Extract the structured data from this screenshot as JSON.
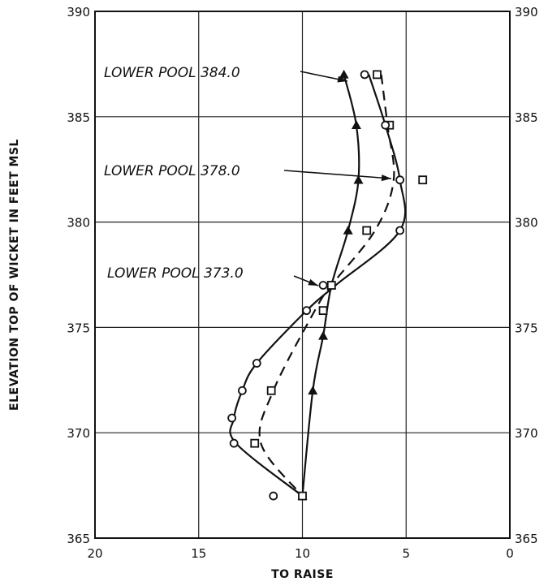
{
  "chart_data": {
    "type": "line",
    "title": "",
    "xlabel": "TO RAISE",
    "ylabel": "ELEVATION TOP OF WICKET IN FEET MSL",
    "xlim": [
      20,
      0
    ],
    "ylim": [
      365,
      390
    ],
    "x_ticks": [
      "20",
      "15",
      "10",
      "5",
      "0"
    ],
    "y_ticks": [
      "365",
      "370",
      "375",
      "380",
      "385",
      "390"
    ],
    "grid": true,
    "series": [
      {
        "name": "LOWER POOL 384.0",
        "marker": "triangle",
        "line_style": "solid",
        "points": [
          {
            "x": 8.0,
            "y": 387.0
          },
          {
            "x": 7.4,
            "y": 384.6
          },
          {
            "x": 7.3,
            "y": 382.0
          },
          {
            "x": 7.8,
            "y": 379.6
          },
          {
            "x": 8.6,
            "y": 377.0
          },
          {
            "x": 9.0,
            "y": 374.6
          },
          {
            "x": 9.5,
            "y": 372.0
          },
          {
            "x": 10.0,
            "y": 367.0
          }
        ]
      },
      {
        "name": "LOWER POOL 378.0",
        "marker": "square",
        "line_style": "dashed",
        "points": [
          {
            "x": 6.4,
            "y": 387.0
          },
          {
            "x": 5.8,
            "y": 384.6
          },
          {
            "x": 4.2,
            "y": 382.0
          },
          {
            "x": 6.9,
            "y": 379.6
          },
          {
            "x": 8.6,
            "y": 377.0
          },
          {
            "x": 9.0,
            "y": 375.8
          },
          {
            "x": 11.5,
            "y": 372.0
          },
          {
            "x": 12.3,
            "y": 369.5
          },
          {
            "x": 10.0,
            "y": 367.0
          }
        ]
      },
      {
        "name": "LOWER POOL 373.0",
        "marker": "circle",
        "line_style": "solid",
        "points": [
          {
            "x": 7.0,
            "y": 387.0
          },
          {
            "x": 6.0,
            "y": 384.6
          },
          {
            "x": 5.3,
            "y": 382.0
          },
          {
            "x": 5.3,
            "y": 379.6
          },
          {
            "x": 9.0,
            "y": 377.0
          },
          {
            "x": 9.8,
            "y": 375.8
          },
          {
            "x": 12.2,
            "y": 373.3
          },
          {
            "x": 12.9,
            "y": 372.0
          },
          {
            "x": 13.4,
            "y": 370.7
          },
          {
            "x": 13.3,
            "y": 369.5
          },
          {
            "x": 11.4,
            "y": 367.0
          }
        ]
      }
    ]
  }
}
